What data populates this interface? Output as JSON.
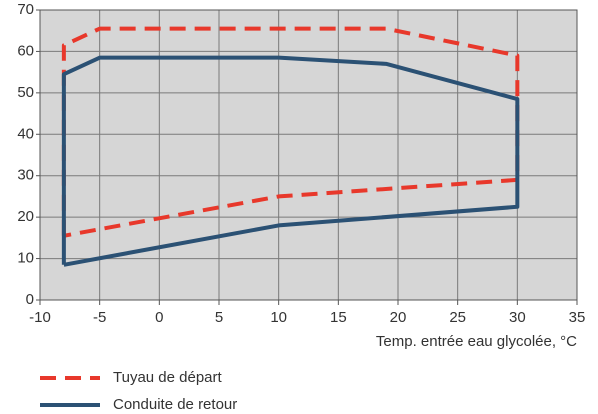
{
  "chart_data": {
    "type": "line",
    "xlabel": "Temp. entrée eau glycolée, °C",
    "xlim": [
      -10,
      35
    ],
    "xticks": [
      -10,
      -5,
      0,
      5,
      10,
      15,
      20,
      25,
      30,
      35
    ],
    "ylim": [
      0,
      70
    ],
    "yticks": [
      0,
      10,
      20,
      30,
      40,
      50,
      60,
      70
    ],
    "grid": true,
    "legend": "bottom-left",
    "series": [
      {
        "name": "Tuyau de départ",
        "color": "#e8382b",
        "dashed": true,
        "x": [
          -8,
          -8,
          -5,
          19,
          30,
          30,
          10,
          -8
        ],
        "values": [
          15.5,
          61.5,
          65.5,
          65.5,
          59,
          29,
          25,
          15.5
        ]
      },
      {
        "name": "Conduite de retour",
        "color": "#2b5174",
        "dashed": false,
        "x": [
          -8,
          -8,
          -5,
          10,
          19,
          30,
          30,
          10,
          -8
        ],
        "values": [
          8.5,
          54.5,
          58.5,
          58.5,
          57,
          48.5,
          22.5,
          18,
          8.5
        ]
      }
    ]
  }
}
